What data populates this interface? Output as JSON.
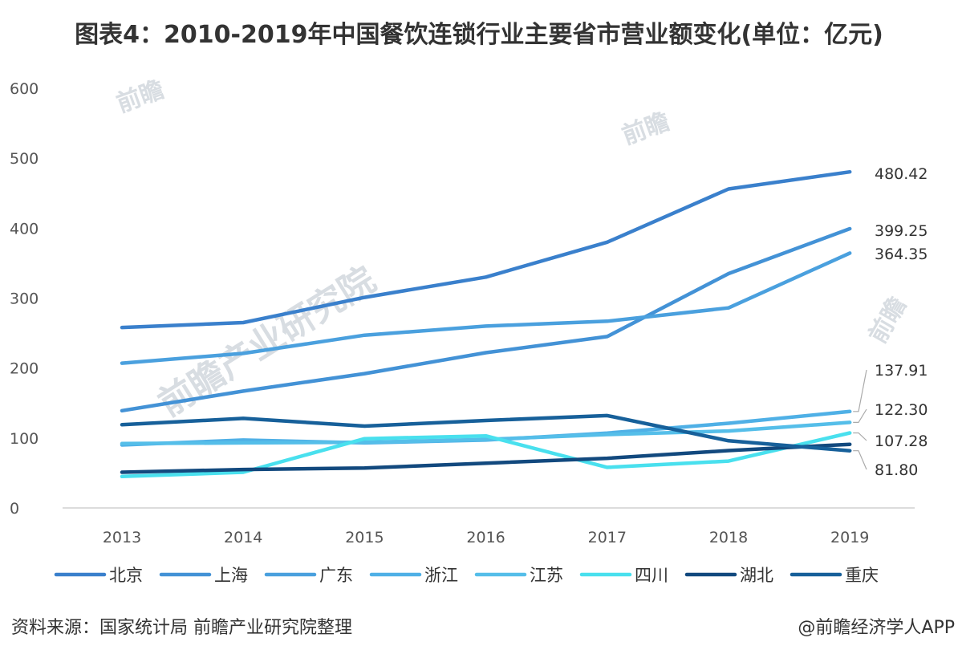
{
  "title": "图表4：2010-2019年中国餐饮连锁行业主要省市营业额变化(单位：亿元)",
  "footer": {
    "source": "资料来源：国家统计局 前瞻产业研究院整理",
    "credit": "@前瞻经济学人APP"
  },
  "chart_data": {
    "type": "line",
    "title": "图表4：2010-2019年中国餐饮连锁行业主要省市营业额变化(单位：亿元)",
    "xlabel": "",
    "ylabel": "",
    "x": [
      "2013",
      "2014",
      "2015",
      "2016",
      "2017",
      "2018",
      "2019"
    ],
    "ylim": [
      0,
      600
    ],
    "yticks": [
      0,
      100,
      200,
      300,
      400,
      500,
      600
    ],
    "grid": false,
    "legend_position": "bottom",
    "series": [
      {
        "name": "北京",
        "color": "#3a80cc",
        "values": [
          258,
          265,
          301,
          330,
          380,
          456,
          480.42
        ]
      },
      {
        "name": "上海",
        "color": "#4392d6",
        "values": [
          139,
          167,
          192,
          222,
          245,
          335,
          399.25
        ]
      },
      {
        "name": "广东",
        "color": "#4aa0de",
        "values": [
          207,
          221,
          247,
          260,
          267,
          286,
          364.35
        ]
      },
      {
        "name": "浙江",
        "color": "#4fb0e6",
        "values": [
          90,
          97,
          93,
          97,
          107,
          121,
          137.91
        ]
      },
      {
        "name": "江苏",
        "color": "#55bee9",
        "values": [
          92,
          93,
          94,
          98,
          105,
          110,
          122.3
        ]
      },
      {
        "name": "四川",
        "color": "#49e0ee",
        "values": [
          45,
          51,
          99,
          103,
          58,
          67,
          107.28
        ]
      },
      {
        "name": "湖北",
        "color": "#12497e",
        "values": [
          51,
          55,
          57,
          64,
          71,
          82,
          91
        ]
      },
      {
        "name": "重庆",
        "color": "#17609a",
        "values": [
          119,
          128,
          117,
          125,
          132,
          96,
          81.8
        ]
      }
    ],
    "end_labels": [
      "480.42",
      "399.25",
      "364.35",
      "137.91",
      "122.30",
      "107.28",
      "81.80"
    ]
  },
  "watermarks": [
    "前瞻产业研究院",
    "前瞻",
    "前瞻",
    "前瞻"
  ]
}
